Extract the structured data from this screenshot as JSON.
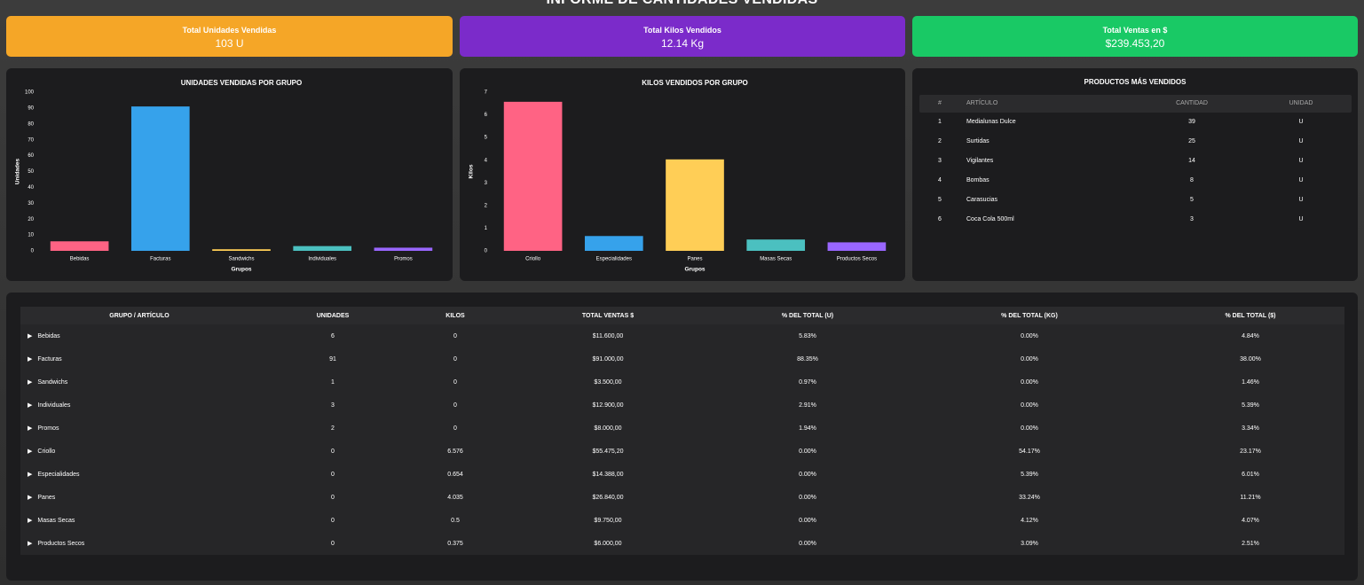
{
  "header": {
    "title": "INFORME DE CANTIDADES VENDIDAS"
  },
  "kpis": [
    {
      "label": "Total Unidades Vendidas",
      "value": "103 U",
      "color": "#f5a627"
    },
    {
      "label": "Total Kilos Vendidos",
      "value": "12.14 Kg",
      "color": "#7b2bca"
    },
    {
      "label": "Total Ventas en $",
      "value": "$239.453,20",
      "color": "#19c965"
    }
  ],
  "chart_data": [
    {
      "type": "bar",
      "title": "UNIDADES VENDIDAS POR GRUPO",
      "x_label": "Grupos",
      "y_label": "Unidades",
      "categories": [
        "Bebidas",
        "Facturas",
        "Sandwichs",
        "Individuales",
        "Promos"
      ],
      "values": [
        6,
        91,
        1,
        3,
        2
      ],
      "colors": [
        "#ff6384",
        "#36a2eb",
        "#ffce56",
        "#4bc0c0",
        "#9966ff"
      ],
      "ylim": [
        0,
        100
      ],
      "yticks": [
        0,
        10,
        20,
        30,
        40,
        50,
        60,
        70,
        80,
        90,
        100
      ],
      "grid": false
    },
    {
      "type": "bar",
      "title": "KILOS VENDIDOS POR GRUPO",
      "x_label": "Grupos",
      "y_label": "Kilos",
      "categories": [
        "Criollo",
        "Especialidades",
        "Panes",
        "Masas Secas",
        "Productos Secos"
      ],
      "values": [
        6.576,
        0.654,
        4.035,
        0.5,
        0.375
      ],
      "colors": [
        "#ff6384",
        "#36a2eb",
        "#ffce56",
        "#4bc0c0",
        "#9966ff"
      ],
      "ylim": [
        0,
        7
      ],
      "yticks": [
        0,
        1,
        2,
        3,
        4,
        5,
        6,
        7
      ],
      "grid": false
    }
  ],
  "top_products": {
    "title": "PRODUCTOS MÁS VENDIDOS",
    "columns": [
      "#",
      "ARTÍCULO",
      "CANTIDAD",
      "UNIDAD"
    ],
    "rows": [
      [
        "1",
        "Medialunas Dulce",
        "39",
        "U"
      ],
      [
        "2",
        "Surtidas",
        "25",
        "U"
      ],
      [
        "3",
        "Vigilantes",
        "14",
        "U"
      ],
      [
        "4",
        "Bombas",
        "8",
        "U"
      ],
      [
        "5",
        "Carasucias",
        "5",
        "U"
      ],
      [
        "6",
        "Coca Cola 500ml",
        "3",
        "U"
      ]
    ]
  },
  "table": {
    "columns": [
      "GRUPO / ARTÍCULO",
      "UNIDADES",
      "KILOS",
      "TOTAL VENTAS $",
      "% DEL TOTAL (U)",
      "% DEL TOTAL (KG)",
      "% DEL TOTAL ($)"
    ],
    "rows": [
      [
        "Bebidas",
        "6",
        "0",
        "$11.600,00",
        "5.83%",
        "0.00%",
        "4.84%"
      ],
      [
        "Facturas",
        "91",
        "0",
        "$91.000,00",
        "88.35%",
        "0.00%",
        "38.00%"
      ],
      [
        "Sandwichs",
        "1",
        "0",
        "$3.500,00",
        "0.97%",
        "0.00%",
        "1.46%"
      ],
      [
        "Individuales",
        "3",
        "0",
        "$12.900,00",
        "2.91%",
        "0.00%",
        "5.39%"
      ],
      [
        "Promos",
        "2",
        "0",
        "$8.000,00",
        "1.94%",
        "0.00%",
        "3.34%"
      ],
      [
        "Criollo",
        "0",
        "6.576",
        "$55.475,20",
        "0.00%",
        "54.17%",
        "23.17%"
      ],
      [
        "Especialidades",
        "0",
        "0.654",
        "$14.388,00",
        "0.00%",
        "5.39%",
        "6.01%"
      ],
      [
        "Panes",
        "0",
        "4.035",
        "$26.840,00",
        "0.00%",
        "33.24%",
        "11.21%"
      ],
      [
        "Masas Secas",
        "0",
        "0.5",
        "$9.750,00",
        "0.00%",
        "4.12%",
        "4.07%"
      ],
      [
        "Productos Secos",
        "0",
        "0.375",
        "$6.000,00",
        "0.00%",
        "3.09%",
        "2.51%"
      ]
    ]
  }
}
